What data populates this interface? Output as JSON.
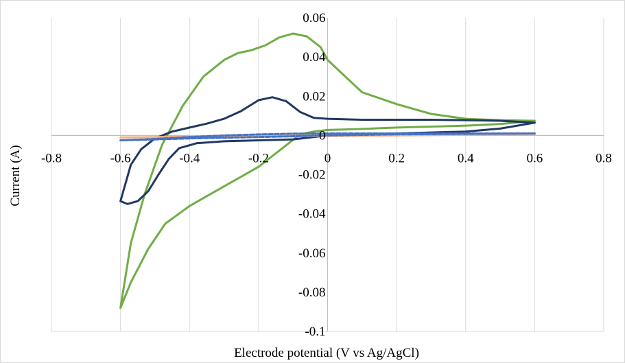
{
  "chart_data": {
    "type": "line",
    "title": "",
    "xlabel": "Electrode potential (V vs Ag/AgCl)",
    "ylabel": "Current (A)",
    "xlim": [
      -0.8,
      0.8
    ],
    "ylim": [
      -0.1,
      0.06
    ],
    "x_ticks": [
      -0.8,
      -0.6,
      -0.4,
      -0.2,
      0,
      0.2,
      0.4,
      0.6,
      0.8
    ],
    "y_ticks": [
      0.06,
      0.04,
      0.02,
      0,
      -0.02,
      -0.04,
      -0.06,
      -0.08,
      -0.1
    ],
    "x_tick_labels": [
      "-0.8",
      "-0.6",
      "-0.4",
      "-0.2",
      "0",
      "0.2",
      "0.4",
      "0.6",
      "0.8"
    ],
    "y_tick_labels": [
      "0.06",
      "0.04",
      "0.02",
      "0",
      "-0.02",
      "-0.04",
      "-0.06",
      "-0.08",
      "-0.1"
    ],
    "grid": "vertical",
    "legend": "none",
    "series": [
      {
        "color": "#70ad47",
        "dashed": false,
        "points": [
          [
            0.6,
            0.0075
          ],
          [
            0.5,
            0.0078
          ],
          [
            0.4,
            0.0085
          ],
          [
            0.3,
            0.011
          ],
          [
            0.2,
            0.016
          ],
          [
            0.1,
            0.022
          ],
          [
            0.0,
            0.0385
          ],
          [
            -0.02,
            0.045
          ],
          [
            -0.06,
            0.0505
          ],
          [
            -0.1,
            0.052
          ],
          [
            -0.14,
            0.05
          ],
          [
            -0.18,
            0.046
          ],
          [
            -0.22,
            0.0435
          ],
          [
            -0.26,
            0.042
          ],
          [
            -0.3,
            0.0385
          ],
          [
            -0.36,
            0.03
          ],
          [
            -0.42,
            0.015
          ],
          [
            -0.48,
            -0.005
          ],
          [
            -0.53,
            -0.03
          ],
          [
            -0.57,
            -0.055
          ],
          [
            -0.6,
            -0.088
          ],
          [
            -0.57,
            -0.075
          ],
          [
            -0.52,
            -0.058
          ],
          [
            -0.47,
            -0.045
          ],
          [
            -0.4,
            -0.036
          ],
          [
            -0.3,
            -0.026
          ],
          [
            -0.2,
            -0.016
          ],
          [
            -0.12,
            -0.005
          ],
          [
            -0.08,
            0.0005
          ],
          [
            -0.04,
            0.002
          ],
          [
            0.0,
            0.0028
          ],
          [
            0.1,
            0.0033
          ],
          [
            0.2,
            0.004
          ],
          [
            0.3,
            0.0045
          ],
          [
            0.4,
            0.005
          ],
          [
            0.5,
            0.0058
          ],
          [
            0.6,
            0.0075
          ]
        ]
      },
      {
        "color": "#203864",
        "dashed": false,
        "points": [
          [
            0.6,
            0.0065
          ],
          [
            0.5,
            0.0075
          ],
          [
            0.4,
            0.0078
          ],
          [
            0.3,
            0.008
          ],
          [
            0.2,
            0.008
          ],
          [
            0.1,
            0.008
          ],
          [
            0.0,
            0.0085
          ],
          [
            -0.04,
            0.009
          ],
          [
            -0.08,
            0.012
          ],
          [
            -0.12,
            0.0175
          ],
          [
            -0.16,
            0.0195
          ],
          [
            -0.2,
            0.018
          ],
          [
            -0.25,
            0.0125
          ],
          [
            -0.3,
            0.0085
          ],
          [
            -0.35,
            0.006
          ],
          [
            -0.4,
            0.004
          ],
          [
            -0.45,
            0.002
          ],
          [
            -0.5,
            -0.0015
          ],
          [
            -0.54,
            -0.007
          ],
          [
            -0.57,
            -0.015
          ],
          [
            -0.6,
            -0.0335
          ],
          [
            -0.58,
            -0.035
          ],
          [
            -0.55,
            -0.0335
          ],
          [
            -0.52,
            -0.0285
          ],
          [
            -0.49,
            -0.02
          ],
          [
            -0.46,
            -0.012
          ],
          [
            -0.43,
            -0.0065
          ],
          [
            -0.38,
            -0.004
          ],
          [
            -0.3,
            -0.003
          ],
          [
            -0.2,
            -0.0025
          ],
          [
            -0.1,
            -0.002
          ],
          [
            0.0,
            0.0
          ],
          [
            0.1,
            0.0005
          ],
          [
            0.2,
            0.001
          ],
          [
            0.3,
            0.0015
          ],
          [
            0.4,
            0.002
          ],
          [
            0.5,
            0.0035
          ],
          [
            0.6,
            0.0065
          ]
        ]
      },
      {
        "color": "#f4b183",
        "dashed": false,
        "points": [
          [
            -0.6,
            -0.001
          ],
          [
            -0.4,
            -0.0008
          ],
          [
            -0.2,
            -0.0005
          ],
          [
            0.0,
            -0.0003
          ],
          [
            0.2,
            0.0
          ],
          [
            0.4,
            0.0003
          ],
          [
            0.6,
            0.0008
          ],
          [
            0.4,
            0.0005
          ],
          [
            0.2,
            0.0002
          ],
          [
            0.0,
            0.0
          ],
          [
            -0.2,
            -0.0003
          ],
          [
            -0.4,
            -0.0006
          ],
          [
            -0.6,
            -0.001
          ]
        ]
      },
      {
        "color": "#4472c4",
        "dashed": true,
        "points": [
          [
            -0.6,
            -0.0025
          ],
          [
            -0.5,
            -0.0018
          ],
          [
            -0.4,
            -0.0008
          ],
          [
            -0.3,
            0.0
          ],
          [
            -0.2,
            0.0005
          ],
          [
            -0.1,
            0.0009
          ],
          [
            0.0,
            0.001
          ],
          [
            0.2,
            0.001
          ],
          [
            0.4,
            0.001
          ],
          [
            0.6,
            0.001
          ],
          [
            0.4,
            0.0008
          ],
          [
            0.2,
            0.0006
          ],
          [
            0.0,
            0.0
          ],
          [
            -0.2,
            -0.0008
          ],
          [
            -0.4,
            -0.0015
          ],
          [
            -0.5,
            -0.002
          ],
          [
            -0.6,
            -0.0025
          ]
        ]
      }
    ]
  }
}
